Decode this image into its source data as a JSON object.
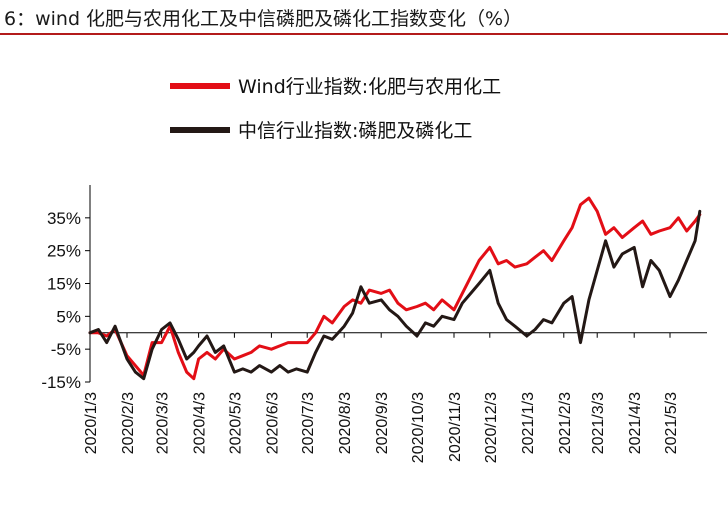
{
  "title": "6：wind 化肥与农用化工及中信磷肥及磷化工指数变化（%）",
  "colors": {
    "accent_rule": "#b31b1b"
  },
  "chart_data": {
    "type": "line",
    "title": "",
    "xlabel": "",
    "ylabel": "",
    "ylim": [
      -15,
      45
    ],
    "yticks": [
      "35%",
      "25%",
      "15%",
      "5%",
      "-5%",
      "-15%"
    ],
    "ytick_values": [
      35,
      25,
      15,
      5,
      -5,
      -15
    ],
    "xticks": [
      "2020/1/3",
      "2020/2/3",
      "2020/3/3",
      "2020/4/3",
      "2020/5/3",
      "2020/6/3",
      "2020/7/3",
      "2020/8/3",
      "2020/9/3",
      "2020/10/3",
      "2020/11/3",
      "2020/12/3",
      "2021/1/3",
      "2021/2/3",
      "2021/3/3",
      "2021/4/3",
      "2021/5/3"
    ],
    "legend_position": "top",
    "grid": false,
    "series": [
      {
        "name": "Wind行业指数:化肥与农用化工",
        "color": "#e30e16",
        "points": [
          [
            "2020-01-03",
            0
          ],
          [
            "2020-01-10",
            0
          ],
          [
            "2020-01-17",
            -1
          ],
          [
            "2020-01-24",
            1
          ],
          [
            "2020-02-03",
            -7
          ],
          [
            "2020-02-10",
            -10
          ],
          [
            "2020-02-17",
            -13
          ],
          [
            "2020-02-24",
            -3
          ],
          [
            "2020-03-03",
            -3
          ],
          [
            "2020-03-10",
            2
          ],
          [
            "2020-03-17",
            -6
          ],
          [
            "2020-03-24",
            -12
          ],
          [
            "2020-03-30",
            -14
          ],
          [
            "2020-04-03",
            -8
          ],
          [
            "2020-04-10",
            -6
          ],
          [
            "2020-04-17",
            -8
          ],
          [
            "2020-04-24",
            -5
          ],
          [
            "2020-05-03",
            -8
          ],
          [
            "2020-05-10",
            -7
          ],
          [
            "2020-05-17",
            -6
          ],
          [
            "2020-05-24",
            -4
          ],
          [
            "2020-06-03",
            -5
          ],
          [
            "2020-06-10",
            -4
          ],
          [
            "2020-06-17",
            -3
          ],
          [
            "2020-06-24",
            -3
          ],
          [
            "2020-07-03",
            -3
          ],
          [
            "2020-07-10",
            0
          ],
          [
            "2020-07-17",
            5
          ],
          [
            "2020-07-24",
            3
          ],
          [
            "2020-08-03",
            8
          ],
          [
            "2020-08-10",
            10
          ],
          [
            "2020-08-17",
            9
          ],
          [
            "2020-08-24",
            13
          ],
          [
            "2020-09-03",
            12
          ],
          [
            "2020-09-10",
            13
          ],
          [
            "2020-09-17",
            9
          ],
          [
            "2020-09-24",
            7
          ],
          [
            "2020-10-03",
            8
          ],
          [
            "2020-10-10",
            9
          ],
          [
            "2020-10-17",
            7
          ],
          [
            "2020-10-24",
            10
          ],
          [
            "2020-11-03",
            7
          ],
          [
            "2020-11-10",
            12
          ],
          [
            "2020-11-17",
            17
          ],
          [
            "2020-11-24",
            22
          ],
          [
            "2020-12-03",
            26
          ],
          [
            "2020-12-10",
            21
          ],
          [
            "2020-12-17",
            22
          ],
          [
            "2020-12-24",
            20
          ],
          [
            "2021-01-03",
            21
          ],
          [
            "2021-01-10",
            23
          ],
          [
            "2021-01-17",
            25
          ],
          [
            "2021-01-24",
            22
          ],
          [
            "2021-02-03",
            28
          ],
          [
            "2021-02-10",
            32
          ],
          [
            "2021-02-17",
            39
          ],
          [
            "2021-02-24",
            41
          ],
          [
            "2021-03-03",
            37
          ],
          [
            "2021-03-10",
            30
          ],
          [
            "2021-03-17",
            32
          ],
          [
            "2021-03-24",
            29
          ],
          [
            "2021-04-03",
            32
          ],
          [
            "2021-04-10",
            34
          ],
          [
            "2021-04-17",
            30
          ],
          [
            "2021-04-24",
            31
          ],
          [
            "2021-05-03",
            32
          ],
          [
            "2021-05-10",
            35
          ],
          [
            "2021-05-17",
            31
          ],
          [
            "2021-05-24",
            34
          ],
          [
            "2021-05-28",
            36
          ]
        ]
      },
      {
        "name": "中信行业指数:磷肥及磷化工",
        "color": "#231815",
        "points": [
          [
            "2020-01-03",
            0
          ],
          [
            "2020-01-10",
            1
          ],
          [
            "2020-01-17",
            -3
          ],
          [
            "2020-01-24",
            2
          ],
          [
            "2020-02-03",
            -8
          ],
          [
            "2020-02-10",
            -12
          ],
          [
            "2020-02-17",
            -14
          ],
          [
            "2020-02-24",
            -5
          ],
          [
            "2020-03-03",
            1
          ],
          [
            "2020-03-10",
            3
          ],
          [
            "2020-03-17",
            -2
          ],
          [
            "2020-03-24",
            -8
          ],
          [
            "2020-03-30",
            -6
          ],
          [
            "2020-04-03",
            -4
          ],
          [
            "2020-04-10",
            -1
          ],
          [
            "2020-04-17",
            -6
          ],
          [
            "2020-04-24",
            -4
          ],
          [
            "2020-05-03",
            -12
          ],
          [
            "2020-05-10",
            -11
          ],
          [
            "2020-05-17",
            -12
          ],
          [
            "2020-05-24",
            -10
          ],
          [
            "2020-06-03",
            -12
          ],
          [
            "2020-06-10",
            -10
          ],
          [
            "2020-06-17",
            -12
          ],
          [
            "2020-06-24",
            -11
          ],
          [
            "2020-07-03",
            -12
          ],
          [
            "2020-07-10",
            -6
          ],
          [
            "2020-07-17",
            -1
          ],
          [
            "2020-07-24",
            -2
          ],
          [
            "2020-08-03",
            2
          ],
          [
            "2020-08-10",
            6
          ],
          [
            "2020-08-17",
            14
          ],
          [
            "2020-08-24",
            9
          ],
          [
            "2020-09-03",
            10
          ],
          [
            "2020-09-10",
            7
          ],
          [
            "2020-09-17",
            5
          ],
          [
            "2020-09-24",
            2
          ],
          [
            "2020-10-03",
            -1
          ],
          [
            "2020-10-10",
            3
          ],
          [
            "2020-10-17",
            2
          ],
          [
            "2020-10-24",
            5
          ],
          [
            "2020-11-03",
            4
          ],
          [
            "2020-11-10",
            9
          ],
          [
            "2020-11-17",
            12
          ],
          [
            "2020-11-24",
            15
          ],
          [
            "2020-12-03",
            19
          ],
          [
            "2020-12-10",
            9
          ],
          [
            "2020-12-17",
            4
          ],
          [
            "2020-12-24",
            2
          ],
          [
            "2021-01-03",
            -1
          ],
          [
            "2021-01-10",
            1
          ],
          [
            "2021-01-17",
            4
          ],
          [
            "2021-01-24",
            3
          ],
          [
            "2021-02-03",
            9
          ],
          [
            "2021-02-10",
            11
          ],
          [
            "2021-02-17",
            -3
          ],
          [
            "2021-02-24",
            10
          ],
          [
            "2021-03-03",
            19
          ],
          [
            "2021-03-10",
            28
          ],
          [
            "2021-03-17",
            20
          ],
          [
            "2021-03-24",
            24
          ],
          [
            "2021-04-03",
            26
          ],
          [
            "2021-04-10",
            14
          ],
          [
            "2021-04-17",
            22
          ],
          [
            "2021-04-24",
            19
          ],
          [
            "2021-05-03",
            11
          ],
          [
            "2021-05-10",
            16
          ],
          [
            "2021-05-17",
            22
          ],
          [
            "2021-05-24",
            28
          ],
          [
            "2021-05-28",
            37
          ]
        ]
      }
    ]
  }
}
